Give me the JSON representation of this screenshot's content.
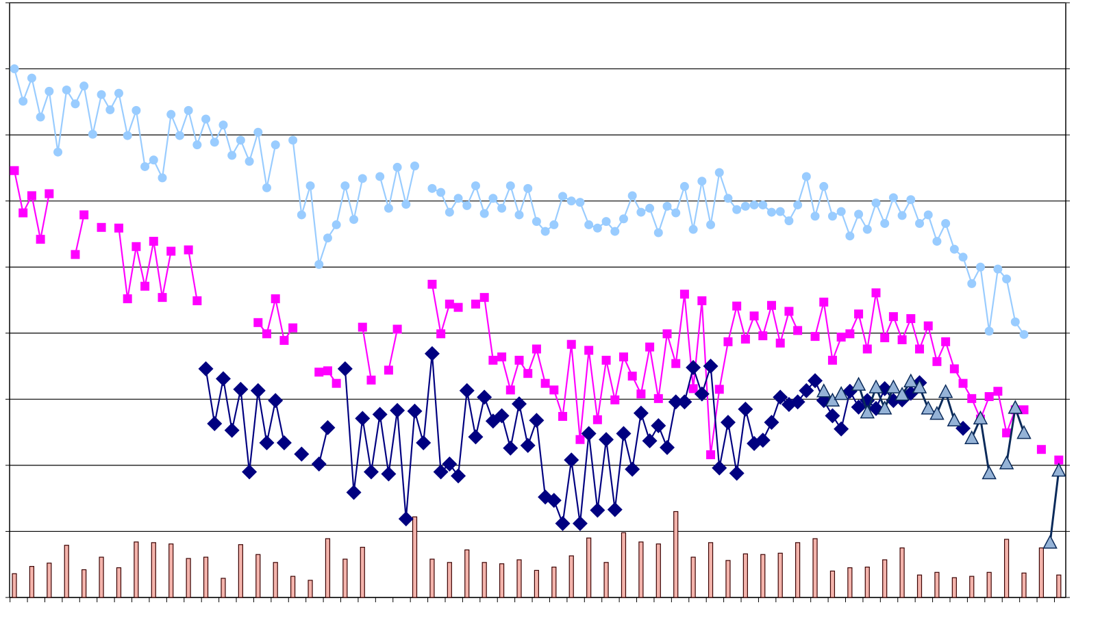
{
  "chart_data": {
    "type": "line",
    "xlim": [
      -0.55,
      120.8
    ],
    "xticks": [
      -0.5,
      1.5,
      3.5,
      5.5,
      7.5,
      9.5,
      11.5,
      13.5,
      15.5,
      17.5,
      19.5,
      21.5,
      23.5,
      25.5,
      27.5,
      29.5,
      31.5,
      33.5,
      35.5,
      37.5,
      39.5,
      41.5,
      43.5,
      45.5,
      47.5,
      49.5,
      51.5,
      53.5,
      55.5,
      57.5,
      59.5,
      61.5,
      63.5,
      65.5,
      67.5,
      69.5,
      71.5,
      73.5,
      75.5,
      77.5,
      79.5,
      81.5,
      83.5,
      85.5,
      87.5,
      89.5,
      91.5,
      93.5,
      95.5,
      97.5,
      99.5,
      101.5,
      103.5,
      105.5,
      107.5,
      109.5,
      111.5,
      113.5,
      115.5,
      117.5,
      119.5
    ],
    "ylim": [
      0,
      9
    ],
    "yticks": [
      0,
      1,
      2,
      3,
      4,
      5,
      6,
      7,
      8,
      9
    ],
    "grid": true,
    "series": [
      {
        "type": "bar",
        "color": "#f4b4ac",
        "edge": "#3a0000",
        "values": [
          0.36,
          null,
          0.47,
          null,
          0.52,
          null,
          0.79,
          null,
          0.42,
          null,
          0.61,
          null,
          0.45,
          null,
          0.84,
          null,
          0.83,
          null,
          0.81,
          null,
          0.59,
          null,
          0.61,
          null,
          0.29,
          null,
          0.8,
          null,
          0.65,
          null,
          0.53,
          null,
          0.32,
          null,
          0.26,
          null,
          0.89,
          null,
          0.58,
          null,
          0.76,
          null,
          null,
          null,
          null,
          null,
          1.22,
          null,
          0.58,
          null,
          0.53,
          null,
          0.72,
          null,
          0.53,
          null,
          0.51,
          null,
          0.57,
          null,
          0.41,
          null,
          0.46,
          null,
          0.63,
          null,
          0.9,
          null,
          0.53,
          null,
          0.98,
          null,
          0.84,
          null,
          0.81,
          null,
          1.3,
          null,
          0.61,
          null,
          0.83,
          null,
          0.56,
          null,
          0.66,
          null,
          0.65,
          null,
          0.67,
          null,
          0.83,
          null,
          0.89,
          null,
          0.4,
          null,
          0.45,
          null,
          0.46,
          null,
          0.57,
          null,
          0.75,
          null,
          0.34,
          null,
          0.38,
          null,
          0.3,
          null,
          0.32,
          null,
          0.38,
          null,
          0.88,
          null,
          0.37,
          null,
          0.75,
          null,
          0.34
        ]
      },
      {
        "type": "line",
        "marker": "circle",
        "color": "#99ccff",
        "values": [
          8.0,
          7.51,
          7.86,
          7.27,
          7.66,
          6.74,
          7.68,
          7.47,
          7.74,
          7.01,
          7.61,
          7.38,
          7.63,
          6.99,
          7.37,
          6.52,
          6.62,
          6.35,
          7.31,
          6.99,
          7.37,
          6.85,
          7.24,
          6.89,
          7.15,
          6.69,
          6.92,
          6.6,
          7.04,
          6.2,
          6.85,
          null,
          6.92,
          5.79,
          6.23,
          5.04,
          5.44,
          5.64,
          6.23,
          5.72,
          6.34,
          null,
          6.37,
          5.89,
          6.51,
          5.95,
          6.53,
          null,
          6.19,
          6.13,
          5.83,
          6.04,
          5.93,
          6.23,
          5.81,
          6.04,
          5.89,
          6.23,
          5.79,
          6.19,
          5.69,
          5.54,
          5.64,
          6.07,
          6.0,
          5.98,
          5.64,
          5.59,
          5.69,
          5.54,
          5.73,
          6.08,
          5.83,
          5.89,
          5.52,
          5.92,
          5.82,
          6.22,
          5.57,
          6.3,
          5.64,
          6.43,
          6.04,
          5.87,
          5.92,
          5.94,
          5.94,
          5.83,
          5.84,
          5.7,
          5.94,
          6.37,
          5.77,
          6.22,
          5.77,
          5.84,
          5.47,
          5.8,
          5.57,
          5.97,
          5.66,
          6.05,
          5.78,
          6.02,
          5.66,
          5.79,
          5.39,
          5.66,
          5.27,
          5.15,
          4.75,
          5.0,
          4.03,
          4.97,
          4.82,
          4.17,
          3.98,
          null,
          null,
          null,
          null
        ]
      },
      {
        "type": "line",
        "marker": "square",
        "color": "#ff00ff",
        "values": [
          6.46,
          5.82,
          6.08,
          5.42,
          6.11,
          null,
          null,
          5.19,
          5.79,
          null,
          5.6,
          null,
          5.59,
          4.52,
          5.31,
          4.71,
          5.39,
          4.54,
          5.24,
          null,
          5.26,
          4.49,
          null,
          null,
          null,
          null,
          null,
          null,
          4.16,
          3.99,
          4.52,
          3.89,
          4.08,
          null,
          null,
          3.41,
          3.43,
          3.24,
          null,
          null,
          4.09,
          3.29,
          null,
          3.44,
          4.06,
          null,
          null,
          null,
          4.74,
          3.99,
          4.44,
          4.39,
          null,
          4.44,
          4.54,
          3.59,
          3.64,
          3.14,
          3.59,
          3.39,
          3.76,
          3.24,
          3.14,
          2.74,
          3.83,
          2.39,
          3.74,
          2.69,
          3.59,
          2.99,
          3.64,
          3.35,
          3.08,
          3.79,
          3.01,
          3.99,
          3.54,
          4.59,
          3.16,
          4.49,
          2.16,
          3.15,
          3.87,
          4.41,
          3.91,
          4.26,
          3.96,
          4.42,
          3.85,
          4.33,
          4.04,
          null,
          3.95,
          4.47,
          3.59,
          3.94,
          3.99,
          4.29,
          3.76,
          4.61,
          3.93,
          4.25,
          3.9,
          4.22,
          3.76,
          4.11,
          3.57,
          3.87,
          3.46,
          3.24,
          3.01,
          2.7,
          3.04,
          3.12,
          2.49,
          2.84,
          2.84,
          null,
          2.24,
          null,
          2.08
        ]
      },
      {
        "type": "line",
        "marker": "diamond",
        "color": "#000080",
        "values": [
          null,
          null,
          null,
          null,
          null,
          null,
          null,
          null,
          null,
          null,
          null,
          null,
          null,
          null,
          null,
          null,
          null,
          null,
          null,
          null,
          null,
          null,
          3.46,
          2.63,
          3.31,
          2.53,
          3.15,
          1.9,
          3.13,
          2.34,
          2.98,
          2.34,
          null,
          2.17,
          null,
          2.02,
          2.57,
          null,
          3.46,
          1.59,
          2.71,
          1.9,
          2.77,
          1.87,
          2.83,
          1.19,
          2.82,
          2.34,
          3.69,
          1.9,
          2.02,
          1.84,
          3.13,
          2.43,
          3.03,
          2.67,
          2.75,
          2.26,
          2.93,
          2.3,
          2.68,
          1.52,
          1.47,
          1.12,
          2.08,
          1.12,
          2.48,
          1.32,
          2.39,
          1.33,
          2.48,
          1.94,
          2.79,
          2.37,
          2.6,
          2.27,
          2.96,
          2.96,
          3.48,
          3.08,
          3.5,
          1.96,
          2.65,
          1.88,
          2.85,
          2.33,
          2.38,
          2.65,
          3.03,
          2.92,
          2.96,
          3.13,
          3.28,
          2.98,
          2.75,
          2.55,
          3.12,
          2.88,
          2.98,
          2.86,
          3.16,
          2.98,
          2.99,
          3.09,
          3.25,
          null,
          null,
          null,
          null,
          2.56,
          null,
          null,
          null,
          null,
          null,
          null,
          null,
          null,
          null,
          null,
          null
        ]
      },
      {
        "type": "line",
        "marker": "triangle",
        "color": "#0a2a5a",
        "fill": "#95b3d7",
        "values": [
          null,
          null,
          null,
          null,
          null,
          null,
          null,
          null,
          null,
          null,
          null,
          null,
          null,
          null,
          null,
          null,
          null,
          null,
          null,
          null,
          null,
          null,
          null,
          null,
          null,
          null,
          null,
          null,
          null,
          null,
          null,
          null,
          null,
          null,
          null,
          null,
          null,
          null,
          null,
          null,
          null,
          null,
          null,
          null,
          null,
          null,
          null,
          null,
          null,
          null,
          null,
          null,
          null,
          null,
          null,
          null,
          null,
          null,
          null,
          null,
          null,
          null,
          null,
          null,
          null,
          null,
          null,
          null,
          null,
          null,
          null,
          null,
          null,
          null,
          null,
          null,
          null,
          null,
          null,
          null,
          null,
          null,
          null,
          null,
          null,
          null,
          null,
          null,
          null,
          null,
          null,
          null,
          null,
          3.12,
          2.98,
          3.08,
          null,
          3.22,
          2.8,
          3.18,
          2.86,
          3.18,
          3.07,
          3.27,
          3.18,
          2.86,
          2.78,
          3.11,
          2.68,
          null,
          2.41,
          2.71,
          1.88,
          null,
          2.03,
          2.87,
          2.49,
          null,
          null,
          0.83,
          1.92
        ]
      }
    ]
  }
}
